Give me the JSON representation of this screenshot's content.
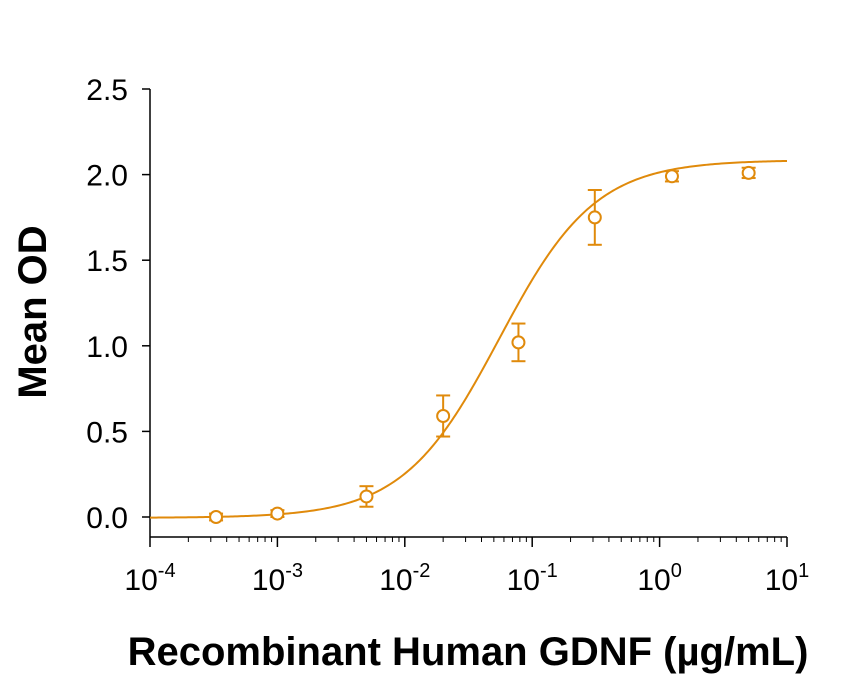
{
  "colors": {
    "series": "#E08A0B",
    "axis": "#000000",
    "background": "#ffffff"
  },
  "chart_data": {
    "type": "scatter",
    "title": "",
    "xlabel": "Recombinant Human GDNF (µg/mL)",
    "ylabel": "Mean OD",
    "x_scale": "log",
    "xlim": [
      0.0001,
      10
    ],
    "ylim": [
      0,
      2.5
    ],
    "x_ticks": [
      {
        "value": 0.0001,
        "base": "10",
        "exp": "-4"
      },
      {
        "value": 0.001,
        "base": "10",
        "exp": "-3"
      },
      {
        "value": 0.01,
        "base": "10",
        "exp": "-2"
      },
      {
        "value": 0.1,
        "base": "10",
        "exp": "-1"
      },
      {
        "value": 1,
        "base": "10",
        "exp": "0"
      },
      {
        "value": 10,
        "base": "10",
        "exp": "1"
      }
    ],
    "y_ticks": [
      "0.0",
      "0.5",
      "1.0",
      "1.5",
      "2.0",
      "2.5"
    ],
    "grid": false,
    "legend": "none",
    "series": [
      {
        "x": [
          0.00033,
          0.001,
          0.005,
          0.02,
          0.078,
          0.31,
          1.25,
          5.0
        ],
        "y": [
          0.0,
          0.02,
          0.12,
          0.59,
          1.02,
          1.75,
          1.99,
          2.01
        ],
        "error": [
          0.02,
          0.02,
          0.06,
          0.12,
          0.11,
          0.16,
          0.03,
          0.03
        ]
      }
    ],
    "fit_curve": {
      "model": "4PL",
      "bottom": -0.005,
      "top": 2.085,
      "ec50": 0.055,
      "hill": 1.15
    }
  }
}
